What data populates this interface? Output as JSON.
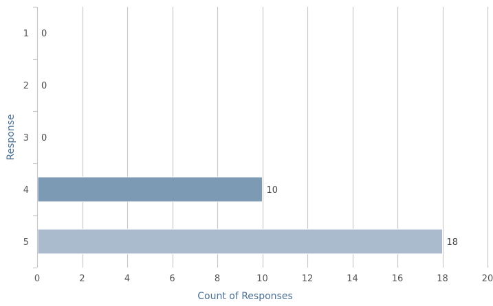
{
  "chart_data": {
    "type": "bar",
    "orientation": "horizontal",
    "categories": [
      "1",
      "2",
      "3",
      "4",
      "5"
    ],
    "values": [
      0,
      0,
      0,
      10,
      18
    ],
    "bar_colors": [
      "#7d9ab4",
      "#7d9ab4",
      "#7d9ab4",
      "#7d9ab4",
      "#a9bbcc"
    ],
    "grid_color": "#c8c8c8",
    "axis_color": "#c8c8c8",
    "title": "",
    "xlabel": "Count of Responses",
    "ylabel": "Response",
    "xlim": [
      0,
      20
    ],
    "x_ticks": [
      0,
      2,
      4,
      6,
      8,
      10,
      12,
      14,
      16,
      18,
      20
    ],
    "grid": true,
    "data_labels": true
  }
}
